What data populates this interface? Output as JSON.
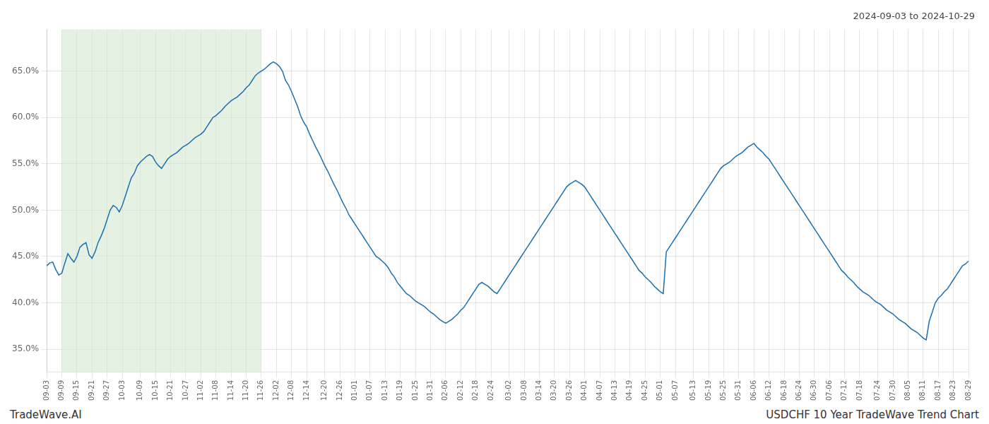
{
  "chart_data": {
    "type": "line",
    "title": "2024-09-03 to 2024-10-29",
    "annotations": [
      "TradeWave.AI",
      "USDCHF 10 Year TradeWave Trend Chart"
    ],
    "color": "#1a6faf",
    "grid": true,
    "ylim": [
      0.325,
      0.695
    ],
    "yticks": [
      {
        "value": 0.35,
        "label": "35.0%"
      },
      {
        "value": 0.4,
        "label": "40.0%"
      },
      {
        "value": 0.45,
        "label": "45.0%"
      },
      {
        "value": 0.5,
        "label": "50.0%"
      },
      {
        "value": 0.55,
        "label": "55.0%"
      },
      {
        "value": 0.6,
        "label": "60.0%"
      },
      {
        "value": 0.65,
        "label": "65.0%"
      }
    ],
    "highlight": {
      "start": "09-09",
      "end": "11-26",
      "color": "#d4e8d0"
    },
    "categories": [
      "09-03",
      null,
      null,
      null,
      null,
      "09-09",
      null,
      null,
      null,
      null,
      "09-15",
      null,
      null,
      null,
      null,
      "09-21",
      null,
      null,
      null,
      null,
      "09-27",
      null,
      null,
      null,
      null,
      "10-03",
      null,
      null,
      null,
      null,
      null,
      "10-09",
      null,
      null,
      null,
      null,
      "10-15",
      null,
      null,
      null,
      null,
      "10-21",
      null,
      null,
      null,
      null,
      "10-27",
      null,
      null,
      null,
      null,
      "11-02",
      null,
      null,
      null,
      null,
      "11-08",
      null,
      null,
      null,
      null,
      "11-14",
      null,
      null,
      null,
      null,
      "11-20",
      null,
      null,
      null,
      null,
      "11-26",
      null,
      null,
      null,
      null,
      "12-02",
      null,
      null,
      null,
      null,
      "12-08",
      null,
      null,
      null,
      null,
      "12-14",
      null,
      null,
      null,
      null,
      null,
      "12-20",
      null,
      null,
      null,
      null,
      "12-26",
      null,
      null,
      null,
      null,
      "01-01",
      null,
      null,
      null,
      null,
      "01-07",
      null,
      null,
      null,
      null,
      "01-13",
      null,
      null,
      null,
      null,
      "01-19",
      null,
      null,
      null,
      null,
      "01-25",
      null,
      null,
      null,
      null,
      "01-31",
      null,
      null,
      null,
      null,
      "02-06",
      null,
      null,
      null,
      null,
      "02-12",
      null,
      null,
      null,
      null,
      "02-18",
      null,
      null,
      null,
      null,
      "02-24",
      null,
      null,
      null,
      null,
      null,
      "03-02",
      null,
      null,
      null,
      null,
      "03-08",
      null,
      null,
      null,
      null,
      "03-14",
      null,
      null,
      null,
      null,
      "03-20",
      null,
      null,
      null,
      null,
      "03-26",
      null,
      null,
      null,
      null,
      "04-01",
      null,
      null,
      null,
      null,
      "04-07",
      null,
      null,
      null,
      null,
      "04-13",
      null,
      null,
      null,
      null,
      "04-19",
      null,
      null,
      null,
      null,
      "04-25",
      null,
      null,
      null,
      null,
      "05-01",
      null,
      null,
      null,
      null,
      "05-07",
      null,
      null,
      null,
      null,
      null,
      "05-13",
      null,
      null,
      null,
      null,
      "05-19",
      null,
      null,
      null,
      null,
      "05-25",
      null,
      null,
      null,
      null,
      "05-31",
      null,
      null,
      null,
      null,
      "06-06",
      null,
      null,
      null,
      null,
      "06-12",
      null,
      null,
      null,
      null,
      "06-18",
      null,
      null,
      null,
      null,
      "06-24",
      null,
      null,
      null,
      null,
      "06-30",
      null,
      null,
      null,
      null,
      "07-06",
      null,
      null,
      null,
      null,
      "07-12",
      null,
      null,
      null,
      null,
      "07-18",
      null,
      null,
      null,
      null,
      null,
      "07-24",
      null,
      null,
      null,
      null,
      "07-30",
      null,
      null,
      null,
      null,
      "08-05",
      null,
      null,
      null,
      null,
      "08-11",
      null,
      null,
      null,
      null,
      "08-17",
      null,
      null,
      null,
      null,
      "08-23",
      null,
      null,
      null,
      null,
      "08-29"
    ],
    "values": [
      0.44,
      0.443,
      0.444,
      0.436,
      0.43,
      0.432,
      0.443,
      0.453,
      0.448,
      0.444,
      0.45,
      0.46,
      0.463,
      0.465,
      0.452,
      0.448,
      0.455,
      0.465,
      0.472,
      0.48,
      0.49,
      0.5,
      0.505,
      0.503,
      0.498,
      0.505,
      0.515,
      0.525,
      0.535,
      0.54,
      0.548,
      0.552,
      0.555,
      0.558,
      0.56,
      0.558,
      0.552,
      0.548,
      0.545,
      0.55,
      0.555,
      0.558,
      0.56,
      0.562,
      0.565,
      0.568,
      0.57,
      0.572,
      0.575,
      0.578,
      0.58,
      0.582,
      0.585,
      0.59,
      0.595,
      0.6,
      0.602,
      0.605,
      0.608,
      0.612,
      0.615,
      0.618,
      0.62,
      0.622,
      0.625,
      0.628,
      0.632,
      0.635,
      0.64,
      0.645,
      0.648,
      0.65,
      0.652,
      0.655,
      0.658,
      0.66,
      0.658,
      0.655,
      0.65,
      0.64,
      0.635,
      0.628,
      0.62,
      0.612,
      0.602,
      0.595,
      0.59,
      0.582,
      0.575,
      0.568,
      0.562,
      0.555,
      0.548,
      0.542,
      0.535,
      0.528,
      0.522,
      0.515,
      0.508,
      0.502,
      0.495,
      0.49,
      0.485,
      0.48,
      0.475,
      0.47,
      0.465,
      0.46,
      0.455,
      0.45,
      0.448,
      0.445,
      0.442,
      0.438,
      0.432,
      0.428,
      0.422,
      0.418,
      0.414,
      0.41,
      0.408,
      0.405,
      0.402,
      0.4,
      0.398,
      0.396,
      0.393,
      0.39,
      0.388,
      0.385,
      0.382,
      0.38,
      0.378,
      0.38,
      0.382,
      0.385,
      0.388,
      0.392,
      0.395,
      0.4,
      0.405,
      0.41,
      0.415,
      0.42,
      0.422,
      0.42,
      0.418,
      0.415,
      0.412,
      0.41,
      0.415,
      0.42,
      0.425,
      0.43,
      0.435,
      0.44,
      0.445,
      0.45,
      0.455,
      0.46,
      0.465,
      0.47,
      0.475,
      0.48,
      0.485,
      0.49,
      0.495,
      0.5,
      0.505,
      0.51,
      0.515,
      0.52,
      0.525,
      0.528,
      0.53,
      0.532,
      0.53,
      0.528,
      0.525,
      0.52,
      0.515,
      0.51,
      0.505,
      0.5,
      0.495,
      0.49,
      0.485,
      0.48,
      0.475,
      0.47,
      0.465,
      0.46,
      0.455,
      0.45,
      0.445,
      0.44,
      0.435,
      0.432,
      0.428,
      0.425,
      0.422,
      0.418,
      0.415,
      0.412,
      0.41,
      0.455,
      0.46,
      0.465,
      0.47,
      0.475,
      0.48,
      0.485,
      0.49,
      0.495,
      0.5,
      0.505,
      0.51,
      0.515,
      0.52,
      0.525,
      0.53,
      0.535,
      0.54,
      0.545,
      0.548,
      0.55,
      0.552,
      0.555,
      0.558,
      0.56,
      0.562,
      0.565,
      0.568,
      0.57,
      0.572,
      0.568,
      0.565,
      0.562,
      0.558,
      0.555,
      0.55,
      0.545,
      0.54,
      0.535,
      0.53,
      0.525,
      0.52,
      0.515,
      0.51,
      0.505,
      0.5,
      0.495,
      0.49,
      0.485,
      0.48,
      0.475,
      0.47,
      0.465,
      0.46,
      0.455,
      0.45,
      0.445,
      0.44,
      0.435,
      0.432,
      0.428,
      0.425,
      0.422,
      0.418,
      0.415,
      0.412,
      0.41,
      0.408,
      0.405,
      0.402,
      0.4,
      0.398,
      0.395,
      0.392,
      0.39,
      0.388,
      0.385,
      0.382,
      0.38,
      0.378,
      0.375,
      0.372,
      0.37,
      0.368,
      0.365,
      0.362,
      0.36,
      0.38,
      0.39,
      0.4,
      0.405,
      0.408,
      0.412,
      0.415,
      0.42,
      0.425,
      0.43,
      0.435,
      0.44,
      0.442,
      0.445
    ]
  }
}
